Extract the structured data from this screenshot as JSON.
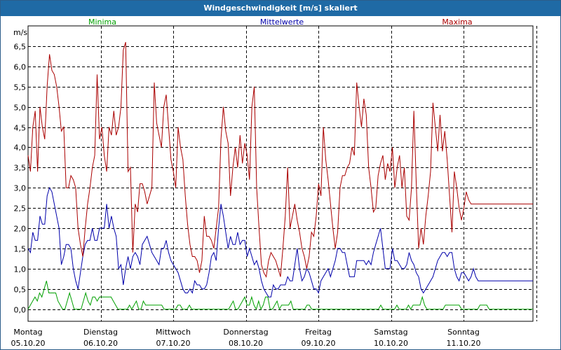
{
  "window": {
    "title": "Windgeschwindigkeit [m/s] skaliert"
  },
  "chart_data": {
    "type": "line",
    "title": "Windgeschwindigkeit [m/s] skaliert",
    "ylabel": "m/s",
    "ylim": [
      -0.3,
      7.0
    ],
    "yticks": [
      "6,5",
      "6,0",
      "5,5",
      "5,0",
      "4,5",
      "4,0",
      "3,5",
      "3,0",
      "2,5",
      "2,0",
      "1,5",
      "1,0",
      "0,5",
      "0,0"
    ],
    "ytick_values": [
      6.5,
      6.0,
      5.5,
      5.0,
      4.5,
      4.0,
      3.5,
      3.0,
      2.5,
      2.0,
      1.5,
      1.0,
      0.5,
      0.0
    ],
    "days": [
      {
        "weekday": "Montag",
        "date": "05.10.20"
      },
      {
        "weekday": "Dienstag",
        "date": "06.10.20"
      },
      {
        "weekday": "Mittwoch",
        "date": "07.10.20"
      },
      {
        "weekday": "Donnerstag",
        "date": "08.10.20"
      },
      {
        "weekday": "Freitag",
        "date": "09.10.20"
      },
      {
        "weekday": "Samstag",
        "date": "10.10.20"
      },
      {
        "weekday": "Sonntag",
        "date": "11.10.20"
      }
    ],
    "grid": true,
    "legend_position": "top",
    "series": [
      {
        "name": "Minima",
        "color": "#00a000",
        "values": [
          0.0,
          0.1,
          0.2,
          0.3,
          0.2,
          0.4,
          0.3,
          0.5,
          0.7,
          0.4,
          0.4,
          0.4,
          0.4,
          0.2,
          0.1,
          0.0,
          0.0,
          0.2,
          0.4,
          0.2,
          0.0,
          0.0,
          0.0,
          0.0,
          0.2,
          0.4,
          0.2,
          0.1,
          0.3,
          0.3,
          0.2,
          0.3,
          0.3,
          0.3,
          0.3,
          0.3,
          0.3,
          0.2,
          0.1,
          0.0,
          0.0,
          0.0,
          0.0,
          0.0,
          0.1,
          0.0,
          0.1,
          0.2,
          0.0,
          0.0,
          0.2,
          0.1,
          0.1,
          0.1,
          0.1,
          0.1,
          0.1,
          0.1,
          0.1,
          0.0,
          0.0,
          0.0,
          0.0,
          0.0,
          0.0,
          0.1,
          0.1,
          0.0,
          0.0,
          0.0,
          0.1,
          0.0,
          0.0,
          0.0,
          0.0,
          0.0,
          0.0,
          0.0,
          0.0,
          0.0,
          0.0,
          0.0,
          0.0,
          0.0,
          0.0,
          0.0,
          0.0,
          0.0,
          0.1,
          0.2,
          0.0,
          0.0,
          0.1,
          0.2,
          0.3,
          0.1,
          0.1,
          0.3,
          0.1,
          0.0,
          0.2,
          0.0,
          0.1,
          0.3,
          0.3,
          0.0,
          0.0,
          0.1,
          0.2,
          0.0,
          0.1,
          0.1,
          0.1,
          0.1,
          0.2,
          0.0,
          0.0,
          0.0,
          0.0,
          0.0,
          0.0,
          0.1,
          0.1,
          0.0,
          0.0,
          0.0,
          0.0,
          0.0,
          0.0,
          0.0,
          0.0,
          0.0,
          0.0,
          0.0,
          0.0,
          0.0,
          0.0,
          0.0,
          0.0,
          0.0,
          0.0,
          0.0,
          0.0,
          0.0,
          0.0,
          0.0,
          0.0,
          0.0,
          0.0,
          0.0,
          0.0,
          0.0,
          0.0,
          0.1,
          0.0,
          0.0,
          0.0,
          0.0,
          0.0,
          0.0,
          0.1,
          0.0,
          0.0,
          0.0,
          0.0,
          0.1,
          0.0,
          0.1,
          0.1,
          0.1,
          0.1,
          0.3,
          0.1,
          0.0,
          0.0,
          0.0,
          0.0,
          0.0,
          0.0,
          0.0,
          0.0,
          0.1,
          0.1,
          0.1,
          0.1,
          0.1,
          0.1,
          0.1,
          0.0,
          0.0,
          0.0,
          0.0,
          0.0,
          0.0,
          0.0,
          0.0,
          0.1,
          0.1,
          0.1,
          0.1,
          0.0,
          0.0,
          0.0,
          0.0,
          0.0,
          0.0,
          0.0,
          0.0,
          0.0,
          0.0,
          0.0,
          0.0,
          0.0,
          0.0,
          0.0,
          0.0,
          0.0,
          0.0,
          0.0,
          0.0
        ]
      },
      {
        "name": "Mittelwerte",
        "color": "#0000aa",
        "values": [
          1.5,
          1.4,
          1.9,
          1.7,
          1.7,
          2.3,
          2.1,
          2.1,
          2.8,
          3.0,
          2.9,
          2.6,
          2.3,
          2.0,
          1.1,
          1.3,
          1.6,
          1.6,
          1.5,
          1.0,
          0.7,
          0.5,
          0.9,
          1.3,
          1.6,
          1.7,
          1.7,
          2.0,
          1.7,
          1.7,
          2.0,
          2.0,
          2.0,
          2.6,
          2.0,
          2.3,
          2.0,
          1.8,
          1.0,
          1.1,
          0.6,
          1.0,
          1.3,
          1.0,
          1.3,
          1.4,
          1.3,
          1.1,
          1.6,
          1.7,
          1.8,
          1.6,
          1.4,
          1.3,
          1.2,
          1.1,
          1.5,
          1.5,
          1.7,
          1.4,
          1.2,
          1.1,
          1.0,
          0.9,
          0.7,
          0.5,
          0.4,
          0.4,
          0.5,
          0.4,
          0.7,
          0.6,
          0.6,
          0.5,
          0.5,
          0.6,
          0.9,
          1.3,
          1.4,
          1.2,
          2.0,
          2.6,
          2.3,
          1.9,
          1.5,
          1.8,
          1.6,
          1.6,
          1.9,
          1.6,
          1.7,
          1.7,
          1.3,
          1.5,
          1.3,
          1.1,
          1.2,
          1.0,
          0.7,
          0.5,
          0.4,
          0.3,
          0.3,
          0.6,
          0.5,
          0.5,
          0.6,
          0.6,
          0.6,
          0.8,
          0.7,
          0.7,
          1.1,
          1.5,
          1.0,
          0.7,
          0.8,
          1.0,
          0.9,
          0.7,
          0.5,
          0.5,
          0.4,
          0.7,
          0.8,
          0.9,
          1.0,
          0.8,
          1.0,
          1.2,
          1.5,
          1.5,
          1.4,
          1.4,
          1.1,
          0.8,
          0.8,
          0.8,
          1.2,
          1.2,
          1.2,
          1.2,
          1.1,
          1.2,
          1.1,
          1.4,
          1.6,
          1.8,
          2.0,
          1.5,
          1.0,
          1.0,
          1.0,
          1.5,
          1.2,
          1.2,
          1.1,
          1.0,
          1.0,
          1.1,
          1.4,
          1.2,
          1.1,
          0.9,
          0.8,
          0.5,
          0.4,
          0.5,
          0.6,
          0.7,
          0.8,
          1.0,
          1.2,
          1.3,
          1.4,
          1.4,
          1.3,
          1.4,
          1.4,
          1.0,
          0.8,
          0.7,
          0.9,
          0.9,
          0.8,
          0.7,
          0.8,
          1.0,
          0.8,
          0.7,
          0.7,
          0.7,
          0.7,
          0.7,
          0.7,
          0.7,
          0.7,
          0.7,
          0.7,
          0.7,
          0.7,
          0.7,
          0.7,
          0.7,
          0.7,
          0.7,
          0.7,
          0.7,
          0.7,
          0.7,
          0.7,
          0.7,
          0.7
        ]
      },
      {
        "name": "Maxima",
        "color": "#aa0000",
        "values": [
          3.8,
          3.4,
          4.5,
          4.9,
          3.4,
          5.0,
          4.5,
          4.2,
          5.5,
          6.3,
          5.9,
          5.8,
          5.5,
          5.0,
          4.4,
          4.5,
          3.0,
          3.0,
          3.3,
          3.2,
          3.0,
          2.0,
          1.6,
          1.3,
          2.0,
          2.6,
          3.0,
          3.5,
          3.8,
          5.8,
          4.2,
          4.5,
          3.8,
          3.4,
          4.5,
          4.3,
          4.9,
          4.3,
          4.5,
          5.0,
          6.4,
          6.6,
          3.4,
          3.5,
          1.4,
          2.6,
          2.4,
          3.1,
          3.1,
          2.9,
          2.6,
          2.8,
          3.0,
          5.6,
          4.6,
          4.3,
          4.0,
          5.0,
          5.3,
          4.5,
          3.7,
          3.4,
          3.0,
          4.5,
          4.0,
          3.7,
          2.8,
          2.1,
          1.6,
          1.3,
          1.3,
          1.2,
          0.9,
          1.2,
          2.3,
          1.8,
          1.8,
          1.7,
          1.5,
          2.0,
          2.5,
          4.2,
          5.0,
          4.4,
          4.1,
          2.8,
          3.5,
          4.0,
          3.5,
          4.3,
          3.6,
          4.1,
          3.8,
          3.2,
          5.0,
          5.5,
          3.0,
          2.0,
          1.1,
          0.9,
          0.8,
          1.2,
          1.4,
          1.3,
          1.2,
          1.0,
          0.8,
          1.5,
          2.3,
          3.5,
          2.0,
          2.3,
          2.6,
          2.2,
          1.9,
          1.5,
          1.3,
          1.0,
          1.3,
          1.9,
          1.8,
          2.3,
          3.1,
          2.8,
          4.5,
          3.7,
          3.2,
          2.6,
          2.0,
          1.5,
          1.9,
          3.0,
          3.3,
          3.3,
          3.5,
          3.6,
          4.0,
          3.8,
          5.6,
          5.0,
          4.5,
          5.2,
          4.8,
          3.5,
          3.0,
          2.4,
          2.5,
          3.3,
          3.6,
          3.8,
          3.2,
          3.6,
          3.4,
          4.0,
          3.0,
          3.5,
          3.8,
          3.0,
          3.5,
          2.3,
          2.2,
          3.0,
          4.9,
          3.1,
          1.5,
          2.0,
          1.6,
          2.3,
          2.8,
          3.4,
          5.1,
          4.5,
          3.9,
          4.8,
          3.9,
          4.4,
          3.7,
          2.8,
          1.9,
          3.4,
          3.0,
          2.5,
          2.2,
          2.5,
          2.9,
          2.7,
          2.6,
          2.6,
          2.6,
          2.6,
          2.6,
          2.6,
          2.6,
          2.6,
          2.6,
          2.6,
          2.6,
          2.6,
          2.6,
          2.6,
          2.6,
          2.6,
          2.6,
          2.6,
          2.6,
          2.6,
          2.6,
          2.6,
          2.6,
          2.6,
          2.6,
          2.6,
          2.6
        ]
      }
    ]
  }
}
